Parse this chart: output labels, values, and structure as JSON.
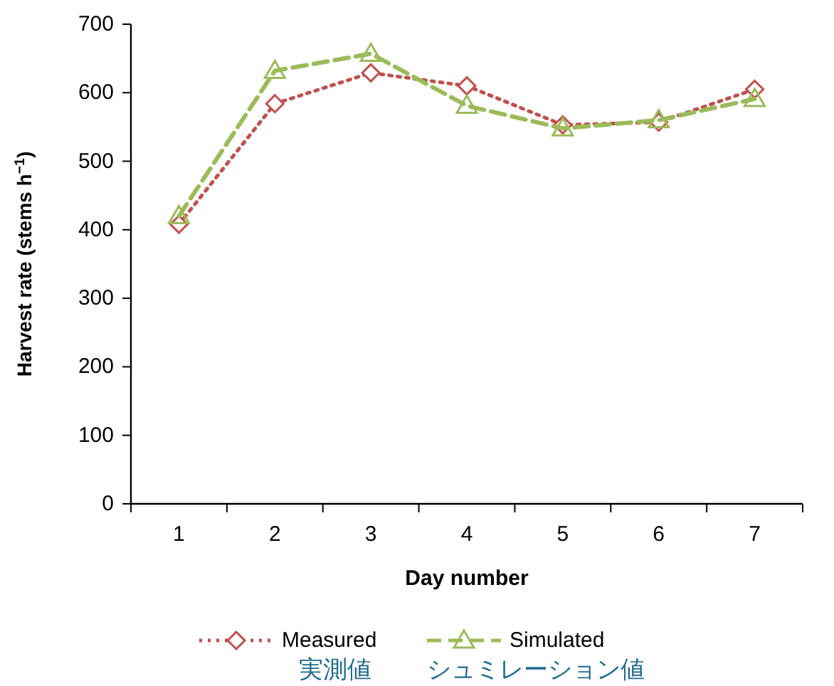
{
  "chart_data": {
    "type": "line",
    "xlabel": "Day number",
    "ylabel": "Harvest rate (stems h$^{−1}$)",
    "categories": [
      "1",
      "2",
      "3",
      "4",
      "5",
      "6",
      "7"
    ],
    "ylim": [
      0,
      700
    ],
    "yticks": [
      0,
      100,
      200,
      300,
      400,
      500,
      600,
      700
    ],
    "grid": false,
    "legend": "bottom",
    "series": [
      {
        "name": "Measured",
        "color": "#c0504d",
        "marker": "diamond",
        "line_style": "dotted",
        "values": [
          408,
          584,
          629,
          610,
          553,
          557,
          605
        ]
      },
      {
        "name": "Simulated",
        "color": "#9bbb59",
        "marker": "triangle",
        "line_style": "dashed",
        "values": [
          420,
          632,
          657,
          581,
          548,
          560,
          591
        ]
      }
    ],
    "annotations": [
      "実測値",
      "シュミレーション値"
    ]
  }
}
